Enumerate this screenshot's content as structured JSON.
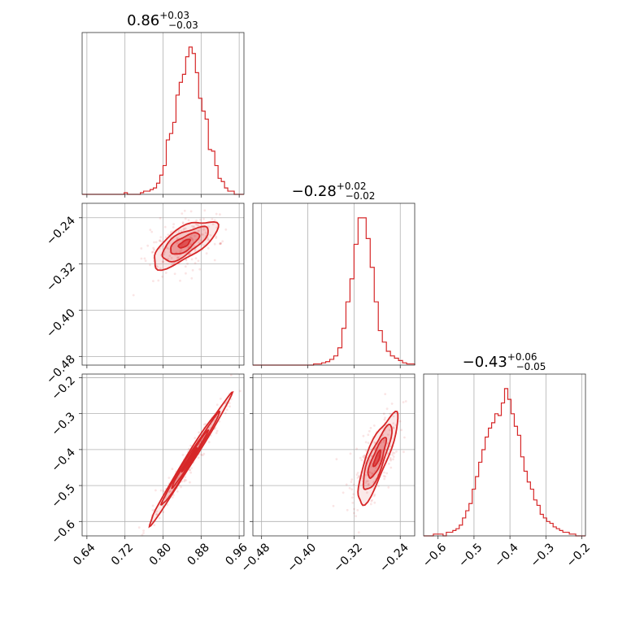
{
  "chart_data": {
    "type": "corner",
    "color": "#d62728",
    "parameters": [
      {
        "title_value": "0.86",
        "title_plus": "+0.03",
        "title_minus": "−0.03",
        "range": [
          0.63,
          0.97
        ]
      },
      {
        "title_value": "−0.28",
        "title_plus": "+0.02",
        "title_minus": "−0.02",
        "range": [
          -0.495,
          -0.215
        ]
      },
      {
        "title_value": "−0.43",
        "title_plus": "+0.06",
        "title_minus": "−0.05",
        "range": [
          -0.64,
          -0.19
        ]
      }
    ],
    "axis_ticks": {
      "p0": {
        "values": [
          0.64,
          0.72,
          0.8,
          0.88,
          0.96
        ],
        "labels": [
          "0.64",
          "0.72",
          "0.80",
          "0.88",
          "0.96"
        ]
      },
      "p1": {
        "values": [
          -0.48,
          -0.4,
          -0.32,
          -0.24
        ],
        "labels": [
          "−0.48",
          "−0.40",
          "−0.32",
          "−0.24"
        ]
      },
      "p2": {
        "values": [
          -0.6,
          -0.5,
          -0.4,
          -0.3,
          -0.2
        ],
        "labels": [
          "−0.6",
          "−0.5",
          "−0.4",
          "−0.3",
          "−0.2"
        ]
      }
    },
    "histograms": [
      {
        "param": 0,
        "bin_start": 0.63,
        "bin_end": 0.97,
        "counts": [
          0,
          0,
          0,
          0,
          0,
          0,
          0,
          0,
          0,
          0,
          0,
          0,
          0,
          1,
          0,
          0,
          0,
          0,
          1,
          2,
          2,
          3,
          4,
          7,
          12,
          18,
          34,
          38,
          45,
          62,
          70,
          75,
          86,
          92,
          88,
          76,
          60,
          52,
          47,
          28,
          27,
          18,
          10,
          8,
          4,
          2,
          2,
          0,
          0,
          0
        ]
      },
      {
        "param": 1,
        "bin_start": -0.495,
        "bin_end": -0.215,
        "counts": [
          0,
          0,
          0,
          0,
          0,
          0,
          0,
          0,
          0,
          0,
          0,
          0,
          0,
          0,
          0,
          1,
          1,
          2,
          3,
          5,
          8,
          15,
          32,
          55,
          75,
          105,
          128,
          128,
          110,
          85,
          55,
          30,
          20,
          12,
          8,
          6,
          4,
          2,
          1,
          1
        ]
      },
      {
        "param": 2,
        "bin_start": -0.64,
        "bin_end": -0.19,
        "counts": [
          0,
          0,
          0,
          1,
          1,
          1,
          0,
          2,
          2,
          3,
          4,
          6,
          10,
          14,
          18,
          26,
          33,
          41,
          48,
          55,
          60,
          63,
          68,
          67,
          74,
          82,
          76,
          68,
          61,
          56,
          44,
          36,
          30,
          26,
          20,
          17,
          12,
          10,
          8,
          7,
          5,
          4,
          3,
          2,
          2,
          1,
          1,
          0,
          0,
          0
        ]
      }
    ],
    "contour_pairs": [
      {
        "x_param": 0,
        "y_param": 1,
        "center": [
          0.845,
          -0.285
        ],
        "direction": [
          0.13,
          0.07
        ],
        "correlation": 0.7
      },
      {
        "x_param": 0,
        "y_param": 2,
        "center": [
          0.855,
          -0.43
        ],
        "direction": [
          0.17,
          0.36
        ],
        "correlation": 0.98
      },
      {
        "x_param": 1,
        "y_param": 2,
        "center": [
          -0.28,
          -0.425
        ],
        "direction": [
          0.06,
          0.25
        ],
        "correlation": 0.85
      }
    ],
    "grid": true,
    "legend": "none"
  }
}
